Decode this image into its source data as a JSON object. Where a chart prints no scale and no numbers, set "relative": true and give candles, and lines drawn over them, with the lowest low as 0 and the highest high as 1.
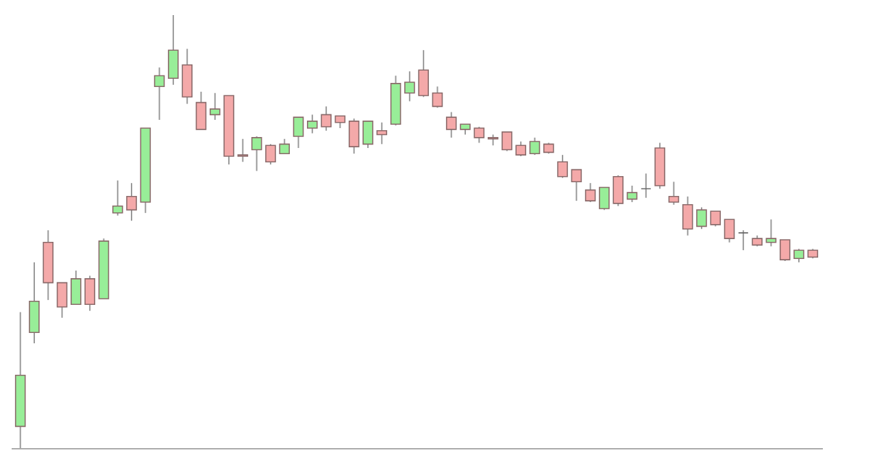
{
  "chart_data": {
    "type": "candlestick",
    "relative": true,
    "categories": [
      null,
      null,
      null,
      null,
      null,
      null,
      null,
      null,
      null,
      null,
      null,
      null,
      null,
      null,
      null,
      null,
      null,
      null,
      null,
      null,
      null,
      null,
      null,
      null,
      null,
      null,
      null,
      null,
      null,
      null,
      null,
      null,
      null,
      null,
      null,
      null,
      null,
      null,
      null,
      null,
      null,
      null,
      null,
      null,
      null,
      null,
      null,
      null,
      null,
      null,
      null,
      null,
      null,
      null,
      null,
      null,
      null,
      null
    ],
    "ohlc": [
      [
        0.05,
        0.314,
        0,
        0.168
      ],
      [
        0.267,
        0.429,
        0.242,
        0.339
      ],
      [
        0.475,
        0.503,
        0.342,
        0.382
      ],
      [
        0.382,
        0.382,
        0.301,
        0.326
      ],
      [
        0.332,
        0.41,
        0.332,
        0.391
      ],
      [
        0.391,
        0.398,
        0.317,
        0.332
      ],
      [
        0.345,
        0.484,
        0.345,
        0.478
      ],
      [
        0.543,
        0.618,
        0.537,
        0.559
      ],
      [
        0.581,
        0.612,
        0.525,
        0.55
      ],
      [
        0.568,
        0.739,
        0.543,
        0.739
      ],
      [
        0.835,
        0.879,
        0.758,
        0.86
      ],
      [
        0.854,
        1,
        0.839,
        0.919
      ],
      [
        0.885,
        0.922,
        0.795,
        0.811
      ],
      [
        0.798,
        0.823,
        0.736,
        0.736
      ],
      [
        0.77,
        0.82,
        0.758,
        0.783
      ],
      [
        0.814,
        0.814,
        0.655,
        0.674
      ],
      [
        0.677,
        0.714,
        0.661,
        0.674
      ],
      [
        0.689,
        0.72,
        0.64,
        0.717
      ],
      [
        0.699,
        0.702,
        0.655,
        0.661
      ],
      [
        0.68,
        0.714,
        0.68,
        0.702
      ],
      [
        0.72,
        0.764,
        0.693,
        0.764
      ],
      [
        0.739,
        0.77,
        0.727,
        0.755
      ],
      [
        0.77,
        0.789,
        0.733,
        0.742
      ],
      [
        0.767,
        0.767,
        0.739,
        0.752
      ],
      [
        0.755,
        0.761,
        0.68,
        0.696
      ],
      [
        0.702,
        0.755,
        0.693,
        0.755
      ],
      [
        0.733,
        0.752,
        0.702,
        0.724
      ],
      [
        0.748,
        0.86,
        0.745,
        0.842
      ],
      [
        0.82,
        0.87,
        0.801,
        0.845
      ],
      [
        0.873,
        0.919,
        0.811,
        0.814
      ],
      [
        0.82,
        0.835,
        0.786,
        0.789
      ],
      [
        0.764,
        0.776,
        0.717,
        0.736
      ],
      [
        0.736,
        0.748,
        0.724,
        0.748
      ],
      [
        0.739,
        0.742,
        0.705,
        0.717
      ],
      [
        0.717,
        0.724,
        0.699,
        0.714
      ],
      [
        0.73,
        0.73,
        0.686,
        0.689
      ],
      [
        0.699,
        0.708,
        0.674,
        0.677
      ],
      [
        0.68,
        0.717,
        0.677,
        0.708
      ],
      [
        0.702,
        0.705,
        0.68,
        0.683
      ],
      [
        0.661,
        0.677,
        0.624,
        0.627
      ],
      [
        0.643,
        0.643,
        0.571,
        0.615
      ],
      [
        0.596,
        0.612,
        0.568,
        0.571
      ],
      [
        0.553,
        0.602,
        0.55,
        0.602
      ],
      [
        0.627,
        0.63,
        0.559,
        0.565
      ],
      [
        0.575,
        0.606,
        0.568,
        0.59
      ],
      [
        0.599,
        0.634,
        0.578,
        0.599
      ],
      [
        0.693,
        0.705,
        0.599,
        0.606
      ],
      [
        0.581,
        0.615,
        0.562,
        0.568
      ],
      [
        0.562,
        0.581,
        0.491,
        0.506
      ],
      [
        0.512,
        0.556,
        0.506,
        0.55
      ],
      [
        0.547,
        0.547,
        0.512,
        0.516
      ],
      [
        0.528,
        0.528,
        0.475,
        0.484
      ],
      [
        0.497,
        0.503,
        0.457,
        0.497
      ],
      [
        0.484,
        0.491,
        0.466,
        0.469
      ],
      [
        0.475,
        0.528,
        0.466,
        0.484
      ],
      [
        0.481,
        0.481,
        0.432,
        0.435
      ],
      [
        0.438,
        0.46,
        0.429,
        0.457
      ],
      [
        0.457,
        0.46,
        0.438,
        0.441
      ]
    ],
    "colors": [
      "#98ee98",
      "#98ee98",
      "#f4a9a9",
      "#f4a9a9",
      "#98ee98",
      "#f4a9a9",
      "#98ee98",
      "#98ee98",
      "#f4a9a9",
      "#98ee98",
      "#98ee98",
      "#98ee98",
      "#f4a9a9",
      "#f4a9a9",
      "#98ee98",
      "#f4a9a9",
      "#f4a9a9",
      "#98ee98",
      "#f4a9a9",
      "#98ee98",
      "#98ee98",
      "#98ee98",
      "#f4a9a9",
      "#f4a9a9",
      "#f4a9a9",
      "#98ee98",
      "#f4a9a9",
      "#98ee98",
      "#98ee98",
      "#f4a9a9",
      "#f4a9a9",
      "#f4a9a9",
      "#98ee98",
      "#f4a9a9",
      "#f4a9a9",
      "#f4a9a9",
      "#f4a9a9",
      "#98ee98",
      "#f4a9a9",
      "#f4a9a9",
      "#f4a9a9",
      "#f4a9a9",
      "#98ee98",
      "#f4a9a9",
      "#98ee98",
      "#666666",
      "#f4a9a9",
      "#f4a9a9",
      "#f4a9a9",
      "#98ee98",
      "#f4a9a9",
      "#f4a9a9",
      "#666666",
      "#f4a9a9",
      "#98ee98",
      "#f4a9a9",
      "#98ee98",
      "#f4a9a9"
    ]
  }
}
